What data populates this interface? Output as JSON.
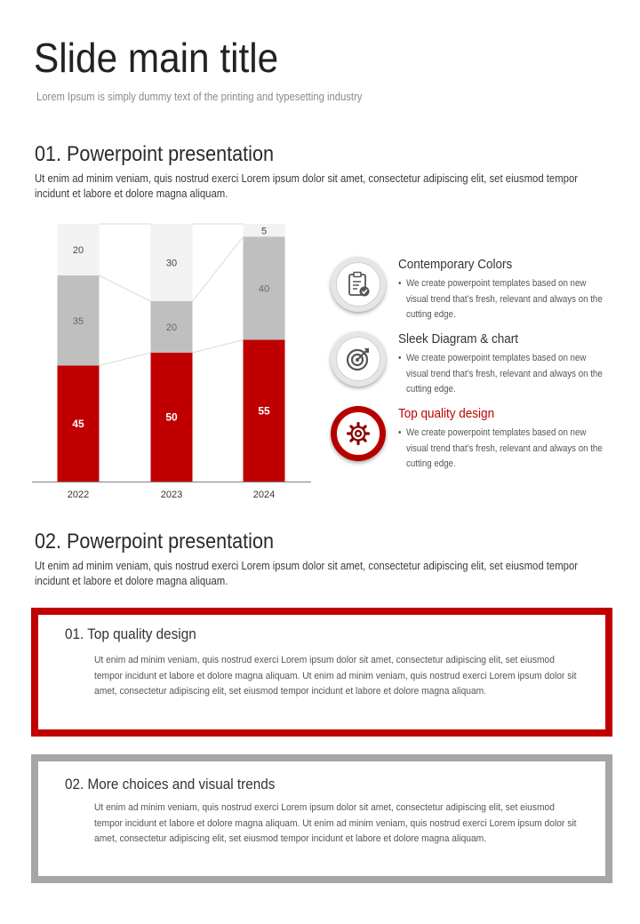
{
  "header": {
    "title": "Slide main title",
    "subtitle": "Lorem Ipsum is simply dummy text of the printing and typesetting industry"
  },
  "section1": {
    "heading": "01. Powerpoint presentation",
    "body": "Ut enim ad minim veniam, quis nostrud exerci  Lorem ipsum dolor sit amet, consectetur adipiscing elit, set eiusmod tempor incidunt et labore et dolore magna aliquam."
  },
  "chart_data": {
    "type": "bar",
    "stacked": true,
    "categories": [
      "2022",
      "2023",
      "2024"
    ],
    "series": [
      {
        "values": [
          45,
          50,
          55
        ],
        "color": "#c00000"
      },
      {
        "values": [
          35,
          20,
          40
        ],
        "color": "#bfbfbf"
      },
      {
        "values": [
          20,
          30,
          5
        ],
        "color": "#f2f2f2"
      }
    ],
    "ylim": [
      0,
      100
    ],
    "grid": false,
    "legend": "none"
  },
  "features": [
    {
      "title": "Contemporary Colors",
      "text": "We create powerpoint templates based on new visual trend that’s fresh, relevant and always on the cutting edge.",
      "icon": "clipboard-check-icon",
      "highlight": false
    },
    {
      "title": "Sleek Diagram & chart",
      "text": "We create powerpoint templates based on new visual trend that’s fresh, relevant and always on the cutting edge.",
      "icon": "target-icon",
      "highlight": false
    },
    {
      "title": "Top quality design",
      "text": "We create powerpoint templates based on new visual trend that’s fresh, relevant and always on the cutting edge.",
      "icon": "gear-icon",
      "highlight": true
    }
  ],
  "bullet": "•",
  "section2": {
    "heading": "02. Powerpoint presentation",
    "body": "Ut enim ad minim veniam, quis nostrud exerci  Lorem ipsum dolor sit amet, consectetur adipiscing elit, set eiusmod tempor incidunt et labore et dolore magna aliquam."
  },
  "boxes": [
    {
      "title": "01. Top quality design",
      "text": "Ut enim ad minim veniam, quis nostrud exerci  Lorem ipsum dolor sit amet, consectetur adipiscing elit, set eiusmod tempor incidunt et labore et dolore magna aliquam. Ut enim ad minim veniam, quis nostrud exerci Lorem ipsum dolor sit amet, consectetur adipiscing elit, set eiusmod tempor incidunt et labore et dolore magna aliquam.",
      "accent": "#c00000"
    },
    {
      "title": "02. More choices and visual trends",
      "text": "Ut enim ad minim veniam, quis nostrud exerci  Lorem ipsum dolor sit amet, consectetur adipiscing elit, set eiusmod tempor incidunt et labore et dolore magna aliquam. Ut enim ad minim veniam, quis nostrud exerci Lorem ipsum dolor sit amet, consectetur adipiscing elit, set eiusmod tempor incidunt et labore et dolore magna aliquam.",
      "accent": "#a6a6a6"
    }
  ]
}
